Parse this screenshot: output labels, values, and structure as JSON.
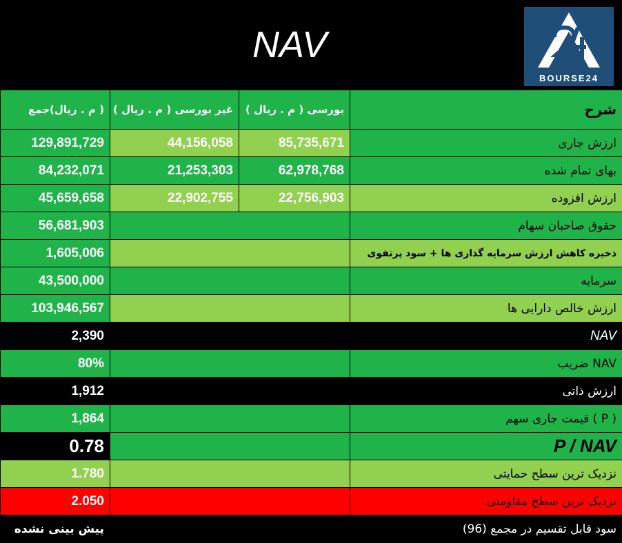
{
  "title": "NAV",
  "logo": {
    "text": "BOURSE24",
    "bg": "#1f4e79"
  },
  "header": {
    "desc": "شرح",
    "bourse": "بورسی ( م . ریال )",
    "nonbourse": "غیر بورسی ( م . ریال )",
    "total": "( م . ریال)جمع"
  },
  "rows": {
    "current_value": {
      "label": "ارزش جاری",
      "bourse": "85,735,671",
      "nonbourse": "44,156,058",
      "total": "129,891,729"
    },
    "cost": {
      "label": "بهای تمام شده",
      "bourse": "62,978,768",
      "nonbourse": "21,253,303",
      "total": "84,232,071"
    },
    "added_value": {
      "label": "ارزش افزوده",
      "bourse": "22,756,903",
      "nonbourse": "22,902,755",
      "total": "45,659,658"
    },
    "equity": {
      "label": "حقوق صاحبان سهام",
      "total": "56,681,903"
    },
    "reserve": {
      "label": "ذخیره کاهش ارزش سرمایه گذاری ها + سود پرتفوی",
      "total": "1,605,006"
    },
    "capital": {
      "label": "سرمایه",
      "total": "43,500,000"
    },
    "net_assets": {
      "label": "ارزش خالص دارایی ها",
      "total": "103,946,567"
    },
    "nav": {
      "label": "NAV",
      "total": "2,390"
    },
    "nav_coef": {
      "label": "NAV ضریب",
      "total": "80%"
    },
    "intrinsic": {
      "label": "ارزش ذاتی",
      "total": "1,912"
    },
    "price": {
      "label": "( P ) قیمت جاری سهم",
      "total": "1,864"
    },
    "p_nav": {
      "label": "P / NAV",
      "total": "0.78"
    },
    "support": {
      "label": "نزدیک ترین سطح حمایتی",
      "total": "1.780"
    },
    "resistance": {
      "label": "نزدیک ترین سطح مقاومتی",
      "total": "2.050"
    }
  },
  "footer": {
    "label": "سود قابل تقسیم در مجمع (96)",
    "value": "پیش بینی نشده"
  },
  "colors": {
    "green": "#1fb34a",
    "light_green": "#92d050",
    "red": "#ff0000",
    "black": "#000000"
  }
}
